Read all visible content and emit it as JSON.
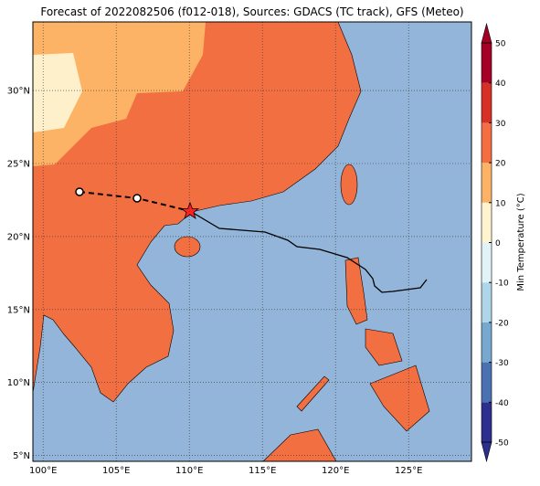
{
  "title": "Forecast of 2022082506 (f012-018), Sources: GDACS (TC track), GFS (Meteo)",
  "map": {
    "xlim": [
      99.3,
      129.3
    ],
    "ylim": [
      4.6,
      34.7
    ],
    "xticks": [
      {
        "value": 100,
        "label": "100°E"
      },
      {
        "value": 105,
        "label": "105°E"
      },
      {
        "value": 110,
        "label": "110°E"
      },
      {
        "value": 115,
        "label": "115°E"
      },
      {
        "value": 120,
        "label": "120°E"
      },
      {
        "value": 125,
        "label": "125°E"
      }
    ],
    "yticks": [
      {
        "value": 5,
        "label": "5°N"
      },
      {
        "value": 10,
        "label": "10°N"
      },
      {
        "value": 15,
        "label": "15°N"
      },
      {
        "value": 20,
        "label": "20°N"
      },
      {
        "value": 25,
        "label": "25°N"
      },
      {
        "value": 30,
        "label": "30°N"
      }
    ],
    "grid": true
  },
  "colorbar": {
    "label": "Min Temperature (°C)",
    "lim": [
      -50,
      50
    ],
    "ticks": [
      -50,
      -40,
      -30,
      -20,
      -10,
      0,
      10,
      20,
      30,
      40,
      50
    ],
    "colors": [
      "#2c2f8e",
      "#4a72b2",
      "#77a9d0",
      "#aed6e8",
      "#e2f3f7",
      "#fff4cf",
      "#fdb365",
      "#f46d43",
      "#d73027",
      "#a50026"
    ]
  }
}
